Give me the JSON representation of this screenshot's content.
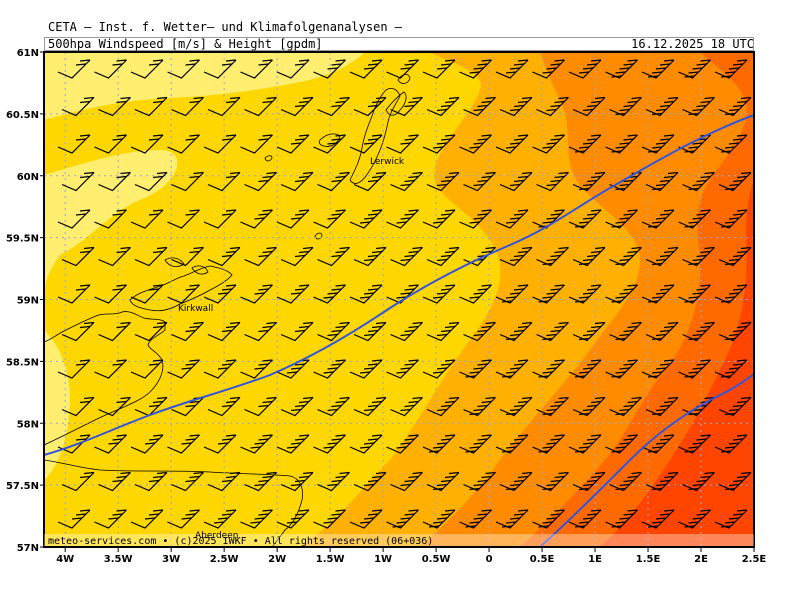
{
  "header": {
    "line1": "CETA — Inst. f. Wetter— und Klimafolgenanalysen —",
    "line2": "500hpa Windspeed [m/s] & Height [gpdm]",
    "datetime": "16.12.2025 18 UTC"
  },
  "footer": {
    "credit": "meteo-services.com • (c)2025 IWKF • All rights reserved (06+036)"
  },
  "map": {
    "lon_range": [
      -4.2,
      2.5
    ],
    "lat_range": [
      57.0,
      61.0
    ],
    "x_ticks": [
      "4W",
      "3.5W",
      "3W",
      "2.5W",
      "2W",
      "1.5W",
      "1W",
      "0.5W",
      "0",
      "0.5E",
      "1E",
      "1.5E",
      "2E",
      "2.5E"
    ],
    "y_ticks": [
      "61N",
      "60.5N",
      "60N",
      "59.5N",
      "59N",
      "58.5N",
      "58N",
      "57.5N",
      "57N"
    ],
    "places": [
      "Lerwick",
      "Kirkwall",
      "Aberdeen"
    ],
    "colors": {
      "pale": "#ffee70",
      "yellow": "#ffd700",
      "light_orange": "#ffb000",
      "orange": "#ff8c00",
      "dark_orange": "#ff6a00",
      "red": "#ff4500",
      "height_contour": "#3355dd",
      "grid": "#9aa7c8"
    }
  }
}
